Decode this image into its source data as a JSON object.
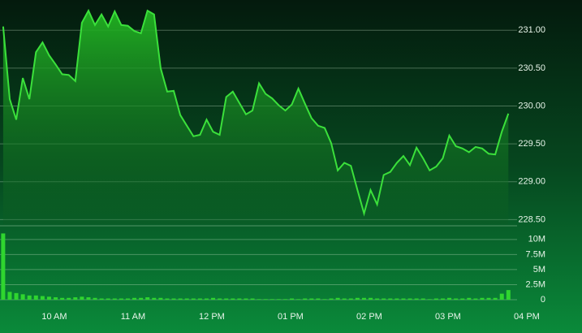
{
  "chart_data": [
    {
      "type": "area",
      "color": "#3be03b",
      "x": [
        561,
        566,
        571,
        576,
        581,
        586,
        591,
        596,
        601,
        606,
        611,
        616,
        621,
        626,
        631,
        636,
        641,
        646,
        651,
        656,
        661,
        666,
        671,
        676,
        681,
        686,
        691,
        696,
        701,
        706,
        711,
        716,
        721,
        726,
        731,
        736,
        741,
        746,
        751,
        756,
        761,
        766,
        771,
        776,
        781,
        786,
        791,
        796,
        801,
        806,
        811,
        816,
        821,
        826,
        831,
        836,
        841,
        846,
        851,
        856,
        861,
        866,
        871,
        876,
        881,
        886,
        891,
        896,
        901,
        906,
        911,
        916,
        921,
        926,
        931,
        936,
        941,
        946
      ],
      "values": [
        231.05,
        230.09,
        229.82,
        230.37,
        230.09,
        230.71,
        230.84,
        230.67,
        230.55,
        230.42,
        230.41,
        230.33,
        231.1,
        231.26,
        231.07,
        231.21,
        231.05,
        231.25,
        231.07,
        231.06,
        230.99,
        230.96,
        231.26,
        231.21,
        230.5,
        230.19,
        230.2,
        229.88,
        229.74,
        229.6,
        229.62,
        229.82,
        229.66,
        229.62,
        230.12,
        230.19,
        230.04,
        229.89,
        229.94,
        230.3,
        230.16,
        230.1,
        230.01,
        229.94,
        230.02,
        230.23,
        230.03,
        229.84,
        229.74,
        229.71,
        229.51,
        229.15,
        229.25,
        229.21,
        228.89,
        228.58,
        228.89,
        228.7,
        229.09,
        229.13,
        229.25,
        229.34,
        229.22,
        229.45,
        229.31,
        229.15,
        229.2,
        229.31,
        229.61,
        229.47,
        229.44,
        229.39,
        229.46,
        229.44,
        229.37,
        229.36,
        229.66,
        229.9
      ],
      "xlim": [
        558.6,
        952
      ],
      "ylim": [
        228.44,
        231.4
      ],
      "yticks": [
        {
          "value": 228.5,
          "label": "228.50"
        },
        {
          "value": 229,
          "label": "229.00"
        },
        {
          "value": 229.5,
          "label": "229.50"
        },
        {
          "value": 230,
          "label": "230.00"
        },
        {
          "value": 230.5,
          "label": "230.50"
        },
        {
          "value": 231,
          "label": "231.00"
        }
      ],
      "grid": true
    },
    {
      "type": "bar",
      "color": "#2fd52f",
      "x": [
        561,
        566,
        571,
        576,
        581,
        586,
        591,
        596,
        601,
        606,
        611,
        616,
        621,
        626,
        631,
        636,
        641,
        646,
        651,
        656,
        661,
        666,
        671,
        676,
        681,
        686,
        691,
        696,
        701,
        706,
        711,
        716,
        721,
        726,
        731,
        736,
        741,
        746,
        751,
        756,
        761,
        766,
        771,
        776,
        781,
        786,
        791,
        796,
        801,
        806,
        811,
        816,
        821,
        826,
        831,
        836,
        841,
        846,
        851,
        856,
        861,
        866,
        871,
        876,
        881,
        886,
        891,
        896,
        901,
        906,
        911,
        916,
        921,
        926,
        931,
        936,
        941,
        946
      ],
      "values": [
        11000000,
        1300000,
        1100000,
        900000,
        700000,
        700000,
        600000,
        500000,
        400000,
        300000,
        300000,
        400000,
        500000,
        400000,
        300000,
        200000,
        200000,
        200000,
        200000,
        200000,
        300000,
        300000,
        400000,
        300000,
        300000,
        200000,
        200000,
        200000,
        200000,
        200000,
        200000,
        200000,
        300000,
        200000,
        200000,
        200000,
        200000,
        200000,
        200000,
        100000,
        100000,
        100000,
        100000,
        100000,
        200000,
        100000,
        200000,
        200000,
        200000,
        100000,
        200000,
        300000,
        200000,
        200000,
        300000,
        300000,
        300000,
        200000,
        200000,
        200000,
        200000,
        200000,
        200000,
        200000,
        200000,
        100000,
        200000,
        200000,
        300000,
        200000,
        200000,
        300000,
        200000,
        300000,
        300000,
        300000,
        1000000,
        1600000
      ],
      "xlim": [
        558.6,
        952
      ],
      "ylim": [
        0,
        12000000
      ],
      "yticks": [
        0,
        {
          "value": 2500000,
          "label": "2.5M"
        },
        {
          "value": 5000000,
          "label": "5M"
        },
        {
          "value": 7500000,
          "label": "7.5M"
        },
        {
          "value": 10000000,
          "label": "10M"
        }
      ],
      "xticks": [
        {
          "value": 600,
          "label": "10 AM"
        },
        {
          "value": 660,
          "label": "11 AM"
        },
        {
          "value": 720,
          "label": "12 PM"
        },
        {
          "value": 780,
          "label": "01 PM"
        },
        {
          "value": 840,
          "label": "02 PM"
        },
        {
          "value": 900,
          "label": "03 PM"
        },
        {
          "value": 960,
          "label": "04 PM"
        }
      ],
      "grid": true
    }
  ]
}
